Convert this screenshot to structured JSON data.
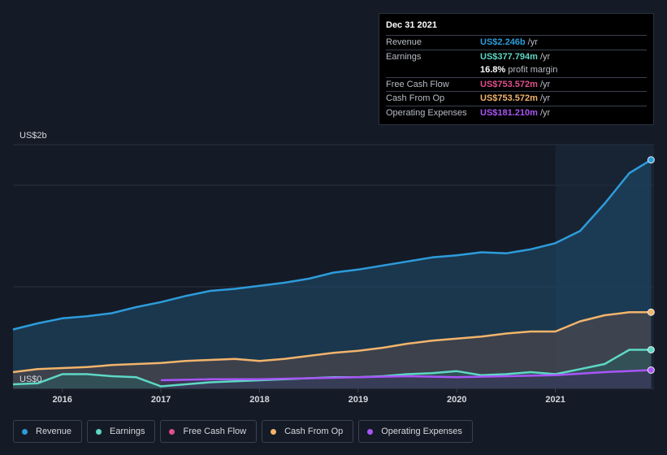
{
  "tooltip": {
    "date": "Dec 31 2021",
    "rows": [
      {
        "label": "Revenue",
        "value": "US$2.246b",
        "unit": "/yr",
        "color": "#2d9cdb"
      },
      {
        "label": "Earnings",
        "value": "US$377.794m",
        "unit": "/yr",
        "color": "#5ed8c5"
      },
      {
        "label": "",
        "value": "16.8%",
        "unit": "profit margin",
        "color": "#ffffff"
      },
      {
        "label": "Free Cash Flow",
        "value": "US$753.572m",
        "unit": "/yr",
        "color": "#e0508a"
      },
      {
        "label": "Cash From Op",
        "value": "US$753.572m",
        "unit": "/yr",
        "color": "#f2b46b"
      },
      {
        "label": "Operating Expenses",
        "value": "US$181.210m",
        "unit": "/yr",
        "color": "#a855f7"
      }
    ]
  },
  "legend": [
    {
      "label": "Revenue",
      "color": "#2d9cdb"
    },
    {
      "label": "Earnings",
      "color": "#5ed8c5"
    },
    {
      "label": "Free Cash Flow",
      "color": "#e0508a"
    },
    {
      "label": "Cash From Op",
      "color": "#f2b46b"
    },
    {
      "label": "Operating Expenses",
      "color": "#a855f7"
    }
  ],
  "chart_data": {
    "type": "area",
    "y_top_label": "US$2b",
    "y_bottom_label": "US$0",
    "ylim": [
      0,
      2.4
    ],
    "xlim": [
      2015.5,
      2022.0
    ],
    "x_ticks": [
      "2016",
      "2017",
      "2018",
      "2019",
      "2020",
      "2021"
    ],
    "x_tick_values": [
      2016,
      2017,
      2018,
      2019,
      2020,
      2021
    ],
    "highlight_start": 2021.0,
    "series": [
      {
        "name": "Revenue",
        "color": "#2d9cdb",
        "points": [
          [
            2015.5,
            0.58
          ],
          [
            2015.75,
            0.64
          ],
          [
            2016.0,
            0.69
          ],
          [
            2016.25,
            0.71
          ],
          [
            2016.5,
            0.74
          ],
          [
            2016.75,
            0.8
          ],
          [
            2017.0,
            0.85
          ],
          [
            2017.25,
            0.91
          ],
          [
            2017.5,
            0.96
          ],
          [
            2017.75,
            0.98
          ],
          [
            2018.0,
            1.01
          ],
          [
            2018.25,
            1.04
          ],
          [
            2018.5,
            1.08
          ],
          [
            2018.75,
            1.14
          ],
          [
            2019.0,
            1.17
          ],
          [
            2019.25,
            1.21
          ],
          [
            2019.5,
            1.25
          ],
          [
            2019.75,
            1.29
          ],
          [
            2020.0,
            1.31
          ],
          [
            2020.25,
            1.34
          ],
          [
            2020.5,
            1.33
          ],
          [
            2020.75,
            1.37
          ],
          [
            2021.0,
            1.43
          ],
          [
            2021.25,
            1.55
          ],
          [
            2021.5,
            1.82
          ],
          [
            2021.75,
            2.12
          ],
          [
            2021.97,
            2.25
          ]
        ]
      },
      {
        "name": "Cash From Op",
        "color": "#f2b46b",
        "points": [
          [
            2015.5,
            0.16
          ],
          [
            2015.75,
            0.19
          ],
          [
            2016.0,
            0.2
          ],
          [
            2016.25,
            0.21
          ],
          [
            2016.5,
            0.23
          ],
          [
            2016.75,
            0.24
          ],
          [
            2017.0,
            0.25
          ],
          [
            2017.25,
            0.27
          ],
          [
            2017.5,
            0.28
          ],
          [
            2017.75,
            0.29
          ],
          [
            2018.0,
            0.27
          ],
          [
            2018.25,
            0.29
          ],
          [
            2018.5,
            0.32
          ],
          [
            2018.75,
            0.35
          ],
          [
            2019.0,
            0.37
          ],
          [
            2019.25,
            0.4
          ],
          [
            2019.5,
            0.44
          ],
          [
            2019.75,
            0.47
          ],
          [
            2020.0,
            0.49
          ],
          [
            2020.25,
            0.51
          ],
          [
            2020.5,
            0.54
          ],
          [
            2020.75,
            0.56
          ],
          [
            2021.0,
            0.56
          ],
          [
            2021.25,
            0.66
          ],
          [
            2021.5,
            0.72
          ],
          [
            2021.75,
            0.75
          ],
          [
            2021.97,
            0.75
          ]
        ]
      },
      {
        "name": "Earnings",
        "color": "#5ed8c5",
        "points": [
          [
            2015.5,
            0.04
          ],
          [
            2015.75,
            0.05
          ],
          [
            2016.0,
            0.14
          ],
          [
            2016.25,
            0.14
          ],
          [
            2016.5,
            0.12
          ],
          [
            2016.75,
            0.11
          ],
          [
            2017.0,
            0.02
          ],
          [
            2017.25,
            0.04
          ],
          [
            2017.5,
            0.06
          ],
          [
            2017.75,
            0.07
          ],
          [
            2018.0,
            0.08
          ],
          [
            2018.25,
            0.09
          ],
          [
            2018.5,
            0.1
          ],
          [
            2018.75,
            0.11
          ],
          [
            2019.0,
            0.11
          ],
          [
            2019.25,
            0.12
          ],
          [
            2019.5,
            0.14
          ],
          [
            2019.75,
            0.15
          ],
          [
            2020.0,
            0.17
          ],
          [
            2020.25,
            0.13
          ],
          [
            2020.5,
            0.14
          ],
          [
            2020.75,
            0.16
          ],
          [
            2021.0,
            0.14
          ],
          [
            2021.25,
            0.19
          ],
          [
            2021.5,
            0.24
          ],
          [
            2021.75,
            0.38
          ],
          [
            2021.97,
            0.38
          ]
        ]
      },
      {
        "name": "Operating Expenses",
        "color": "#a855f7",
        "points": [
          [
            2017.0,
            0.08
          ],
          [
            2017.5,
            0.09
          ],
          [
            2018.0,
            0.09
          ],
          [
            2018.5,
            0.1
          ],
          [
            2019.0,
            0.11
          ],
          [
            2019.5,
            0.12
          ],
          [
            2020.0,
            0.11
          ],
          [
            2020.5,
            0.12
          ],
          [
            2021.0,
            0.13
          ],
          [
            2021.5,
            0.16
          ],
          [
            2021.97,
            0.18
          ]
        ]
      }
    ]
  }
}
